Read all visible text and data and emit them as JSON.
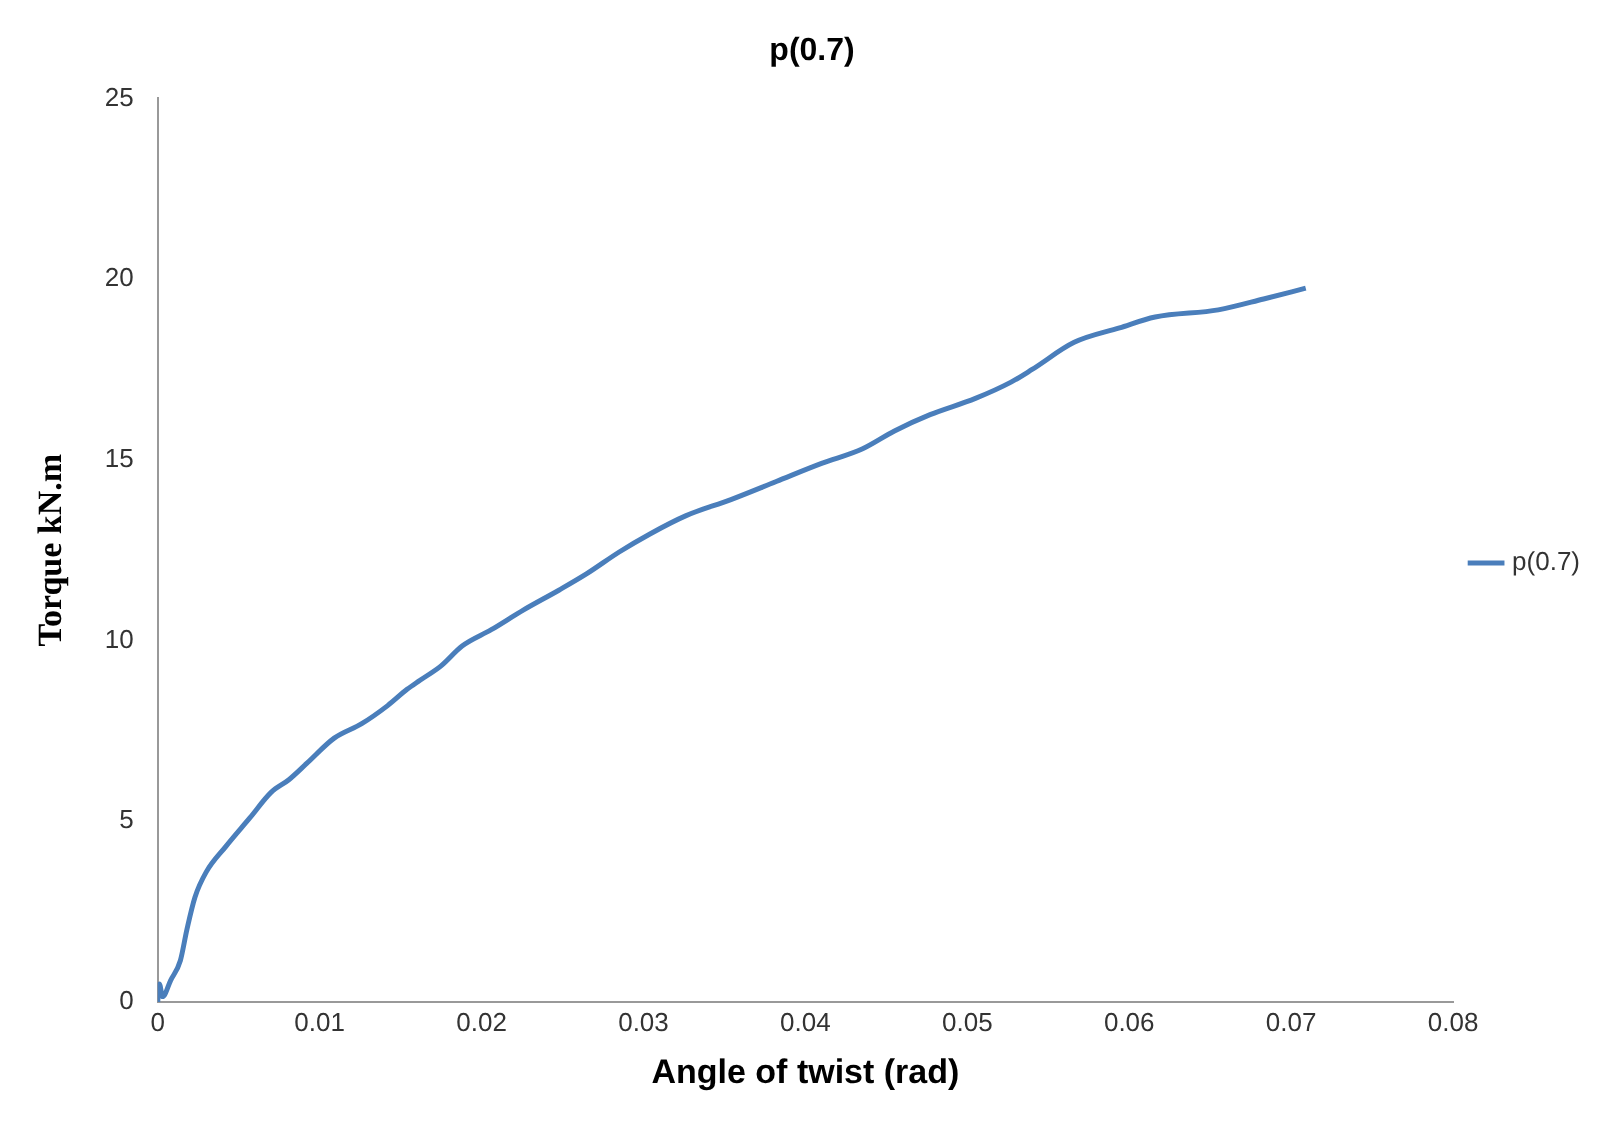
{
  "chart_data": {
    "type": "line",
    "title": "p(0.7)",
    "xlabel": "Angle of twist (rad)",
    "ylabel": "Torque kN.m",
    "xlim": [
      0,
      0.08
    ],
    "xticks": [
      0,
      0.01,
      0.02,
      0.03,
      0.04,
      0.05,
      0.06,
      0.07,
      0.08
    ],
    "ylim": [
      0,
      25
    ],
    "yticks": [
      0,
      5,
      10,
      15,
      20,
      25
    ],
    "grid": false,
    "legend": "right",
    "marker": "none",
    "x": [
      0,
      0.0001,
      0.0003,
      0.0008,
      0.0014,
      0.0018,
      0.0023,
      0.003,
      0.0042,
      0.0057,
      0.007,
      0.0081,
      0.0092,
      0.0109,
      0.0126,
      0.0142,
      0.0154,
      0.0162,
      0.0175,
      0.0188,
      0.0206,
      0.0226,
      0.0248,
      0.0265,
      0.0285,
      0.0304,
      0.0326,
      0.0354,
      0.0382,
      0.041,
      0.0435,
      0.0455,
      0.0477,
      0.0505,
      0.0527,
      0.054,
      0.0566,
      0.0594,
      0.0616,
      0.0655,
      0.0683,
      0.0709
    ],
    "series": [
      {
        "name": "p(0.7)",
        "color": "#4a7ebb",
        "values": [
          0,
          0.5,
          0.15,
          0.6,
          1.15,
          2.0,
          2.9,
          3.6,
          4.3,
          5.1,
          5.8,
          6.15,
          6.6,
          7.3,
          7.7,
          8.2,
          8.65,
          8.9,
          9.3,
          9.85,
          10.3,
          10.85,
          11.4,
          11.85,
          12.45,
          12.95,
          13.45,
          13.9,
          14.4,
          14.9,
          15.3,
          15.8,
          16.25,
          16.7,
          17.15,
          17.5,
          18.25,
          18.65,
          18.95,
          19.15,
          19.45,
          19.75
        ]
      }
    ]
  }
}
